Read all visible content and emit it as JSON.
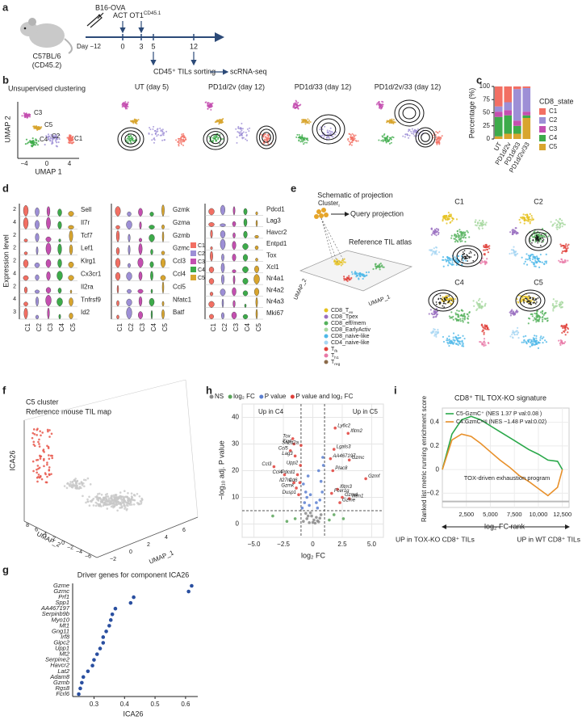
{
  "panel_labels": [
    "a",
    "b",
    "c",
    "d",
    "e",
    "f",
    "g",
    "h",
    "i"
  ],
  "panel_a": {
    "tumor": "B16-OVA",
    "day_start": "Day −12",
    "act": "ACT OT1",
    "act_sup": "CD45.1",
    "days": [
      "0",
      "3",
      "5",
      "12"
    ],
    "mouse": "C57BL/6",
    "mouse_sub": "(CD45.2)",
    "sorting": "CD45⁺ TILs sorting",
    "seq": "scRNA-seq"
  },
  "panel_b": {
    "title": "Unsupervised clustering",
    "clusters": [
      "C3",
      "C5",
      "C4",
      "C2",
      "C1"
    ],
    "ylabel": "UMAP 2",
    "xlabel": "UMAP 1",
    "xticks": [
      "−4",
      "0",
      "4"
    ],
    "conditions": [
      "UT (day 5)",
      "PD1d/2v (day 12)",
      "PD1d/33 (day 12)",
      "PD1d/2v/33 (day 12)"
    ]
  },
  "panel_d": {
    "ylabel": "Expression level",
    "xcats": [
      "C1",
      "C2",
      "C3",
      "C4",
      "C5"
    ],
    "cluster_colors": [
      "#f26f63",
      "#9d8fd6",
      "#c44fb0",
      "#3dab4a",
      "#d8a52e"
    ],
    "groups": [
      {
        "genes": [
          "Sell",
          "Il7r",
          "Tcf7",
          "Lef1",
          "Klrg1",
          "Cx3cr1",
          "Il2ra",
          "Tnfrsf9",
          "Id2"
        ],
        "ticks": [
          "2",
          "4",
          "2",
          "2",
          "2",
          "4",
          "2",
          "4",
          "3"
        ]
      },
      {
        "genes": [
          "Gzmk",
          "Gzma",
          "Gzmb",
          "Gzmc",
          "Ccl3",
          "Ccl4",
          "Ccl5",
          "Nfatc1",
          "Batf"
        ]
      },
      {
        "genes": [
          "Pdcd1",
          "Lag3",
          "Havcr2",
          "Entpd1",
          "Tox",
          "Xcl1",
          "Nr4a1",
          "Nr4a2",
          "Nr4a3",
          "Mki67"
        ]
      }
    ]
  },
  "panel_e": {
    "title": "Schematic of projection",
    "cluster": "Cluster",
    "cluster_sub": "i",
    "query": "Query projection",
    "reference": "Reference TIL atlas",
    "axis_x": "UMAP_1",
    "axis_y": "UMAP_2",
    "legend": [
      {
        "name": "CD8_T",
        "sub": "ex",
        "color": "#e6c21f"
      },
      {
        "name": "CD8_Tpex",
        "color": "#9a6fc0"
      },
      {
        "name": "CD8_eff/mem",
        "color": "#55b25c"
      },
      {
        "name": "CD8_EarlyActiv",
        "color": "#a8d8a0"
      },
      {
        "name": "CD8_naive-like",
        "color": "#4db8e8"
      },
      {
        "name": "CD4_naive-like",
        "color": "#a6d6f2"
      },
      {
        "name": "T",
        "sub": "fh",
        "color": "#e0403a"
      },
      {
        "name": "T",
        "sub": "h1",
        "color": "#e879a8"
      },
      {
        "name": "T",
        "sub": "reg",
        "color": "#8b6a4a"
      }
    ],
    "maps": [
      "C1",
      "C2",
      "C4",
      "C5"
    ]
  },
  "panel_f": {
    "cluster": "C5 cluster",
    "reference": "Reference mouse TIL map",
    "zlabel": "ICA26",
    "ylabel": "UMAP_2",
    "xlabel": "UMAP_1",
    "yticks": [
      "8",
      "6",
      "4",
      "2",
      "0",
      "−2",
      "−4",
      "−6"
    ],
    "xticks": [
      "−2",
      "0",
      "2",
      "4",
      "6"
    ]
  },
  "chart_data": [
    {
      "type": "stacked_bar",
      "ylabel": "Percentage (%)",
      "legend_title": "CD8_state",
      "categories": [
        "UT",
        "PD1d/2v",
        "PD1d/33",
        "PD1d/2v/33"
      ],
      "series": [
        {
          "name": "C1",
          "color": "#f26f63",
          "values": [
            38,
            30,
            5,
            3
          ]
        },
        {
          "name": "C2",
          "color": "#9d8fd6",
          "values": [
            10,
            15,
            60,
            45
          ]
        },
        {
          "name": "C3",
          "color": "#c44fb0",
          "values": [
            10,
            10,
            10,
            7
          ]
        },
        {
          "name": "C4",
          "color": "#3dab4a",
          "values": [
            37,
            35,
            15,
            5
          ]
        },
        {
          "name": "C5",
          "color": "#d8a52e",
          "values": [
            5,
            10,
            10,
            40
          ]
        }
      ],
      "ylim": [
        0,
        100
      ],
      "yticks": [
        0,
        25,
        50,
        75,
        100
      ]
    },
    {
      "type": "dot",
      "title": "Driver genes for component ICA26",
      "xlabel": "ICA26",
      "color": "#2a4fa0",
      "categories": [
        "Gzme",
        "Gzmc",
        "Prf1",
        "Spp1",
        "AA467197",
        "Serpinb9b",
        "Myo10",
        "Mt1",
        "Gng11",
        "Irf8",
        "Gipc2",
        "Upp1",
        "Mt2",
        "Serpine2",
        "Havcr2",
        "Lat2",
        "Adam8",
        "Gzmb",
        "Rgs8",
        "Fcrl6"
      ],
      "values": [
        0.62,
        0.61,
        0.43,
        0.42,
        0.37,
        0.36,
        0.355,
        0.35,
        0.34,
        0.33,
        0.33,
        0.32,
        0.31,
        0.3,
        0.295,
        0.28,
        0.265,
        0.26,
        0.255,
        0.25
      ],
      "xlim": [
        0.23,
        0.64
      ],
      "xticks": [
        0.3,
        0.4,
        0.5,
        0.6
      ]
    },
    {
      "type": "volcano",
      "xlabel": "log₂ FC",
      "ylabel": "−log₁₀ adj. P value",
      "annotations": [
        "Up in C4",
        "Up in C5"
      ],
      "annotation_colors": [
        "#3dab4a",
        "#e8902a"
      ],
      "cutoffs": {
        "x": [
          -1,
          1
        ],
        "y": 5
      },
      "series": [
        {
          "name": "NS",
          "color": "#8a8a8a",
          "x": [
            -0.8,
            -0.5,
            -0.3,
            -0.1,
            0.1,
            0.3,
            0.5,
            0.7,
            -0.6,
            0.2,
            0.4,
            -0.2,
            0.6,
            0.0,
            -0.4
          ],
          "values": [
            1,
            2,
            0.5,
            3,
            1.5,
            2.5,
            0.8,
            3.5,
            4,
            0.3,
            1.2,
            4.2,
            2.2,
            0.6,
            3
          ]
        },
        {
          "name": "log₂ FC",
          "color": "#5aa55a",
          "x": [
            -1.5,
            -2.2,
            -3.4,
            1.4,
            1.8,
            2.6
          ],
          "values": [
            2,
            1,
            3,
            1.5,
            3.5,
            2
          ]
        },
        {
          "name": "P value",
          "color": "#5b7fd0",
          "x": [
            -0.9,
            -0.7,
            -0.5,
            -0.3,
            -0.6,
            -0.8,
            0.4,
            0.6,
            0.8,
            0.7,
            0.5,
            -0.4,
            0.9,
            0.3,
            -0.2,
            0.85
          ],
          "values": [
            6,
            8,
            10,
            7,
            12,
            15,
            6,
            9,
            12,
            16,
            20,
            18,
            22,
            8,
            11,
            25
          ]
        },
        {
          "name": "P value and log₂ FC",
          "color": "#e0403a",
          "labels": [
            "Ly6c2",
            "Ifitm2",
            "Tox",
            "Tigit",
            "Sh2d2a",
            "Lgals3",
            "Ccl5",
            "Lag3",
            "AA467197",
            "Gzmc",
            "Upp2",
            "Ccl3",
            "Plac8",
            "Ccl4",
            "Pdcd1",
            "Gzmf",
            "Il27ra",
            "Cd6",
            "Gzmk",
            "Ifitm3",
            "Fcer1g",
            "Dusp1",
            "Gzmd",
            "Ifitm1",
            "Gzme"
          ],
          "x": [
            1.9,
            3.0,
            -1.7,
            -1.6,
            -1.0,
            1.8,
            -1.9,
            -1.5,
            1.5,
            3.1,
            -1.05,
            -3.3,
            1.7,
            -2.4,
            -1.3,
            4.5,
            -1.6,
            -1.1,
            -1.4,
            2.1,
            1.6,
            -1.2,
            2.5,
            3.1,
            2.3
          ],
          "values": [
            36,
            34,
            32,
            30,
            29.5,
            28,
            27.5,
            25.5,
            24.5,
            24,
            22,
            21.5,
            20,
            18.5,
            18.5,
            17,
            15.5,
            15.5,
            13.5,
            13,
            11.5,
            11,
            10,
            9.5,
            8
          ]
        }
      ],
      "xlim": [
        -6,
        6
      ],
      "ylim": [
        -5,
        45
      ],
      "xticks": [
        {
          "value": -5,
          "label": "−5.0"
        },
        {
          "value": -2.5,
          "label": "−2.5"
        },
        0,
        2.5,
        {
          "value": 5,
          "label": "5.0"
        }
      ],
      "yticks": [
        0,
        10,
        20,
        30,
        40
      ],
      "grid": true
    },
    {
      "type": "line",
      "title": "CD8⁺ TIL TOX-KO signature",
      "ylabel": "Ranked list metric running enrichment score",
      "xlabel": "log₂ FC rank",
      "annotation": "TOX-driven exhaustion program",
      "left_note": "UP in TOX-KO CD8⁺ TILs",
      "right_note": "UP in WT CD8⁺ TILs",
      "x": [
        0,
        1000,
        2000,
        3000,
        4000,
        5000,
        6000,
        7000,
        8000,
        9000,
        10000,
        11000,
        12000,
        12500
      ],
      "series": [
        {
          "name": "C5-GzmC⁺ (NES 1.37 P val:0.08 )",
          "color": "#2aa84a",
          "values": [
            0,
            0.3,
            0.42,
            0.45,
            0.42,
            0.37,
            0.32,
            0.27,
            0.22,
            0.17,
            0.13,
            0.08,
            0.07,
            0
          ]
        },
        {
          "name": "C4:GzmCⁿᵉᵍ (NES −1.48 P val:0.02)",
          "color": "#e8902a",
          "values": [
            0,
            0.25,
            0.3,
            0.28,
            0.22,
            0.15,
            0.08,
            0.02,
            -0.05,
            -0.1,
            -0.16,
            -0.22,
            -0.15,
            0
          ]
        }
      ],
      "xlim": [
        0,
        13200
      ],
      "ylim": [
        -0.32,
        0.52
      ],
      "xticks": [
        {
          "value": 2500,
          "label": "2,500"
        },
        {
          "value": 5000,
          "label": "5,000"
        },
        {
          "value": 7500,
          "label": "7,500"
        },
        {
          "value": 10000,
          "label": "10,000"
        },
        {
          "value": 12500,
          "label": "12,500"
        }
      ],
      "yticks": [
        {
          "value": -0.2,
          "label": "−0.2"
        },
        0,
        0.2,
        0.4
      ],
      "grid": true
    }
  ]
}
